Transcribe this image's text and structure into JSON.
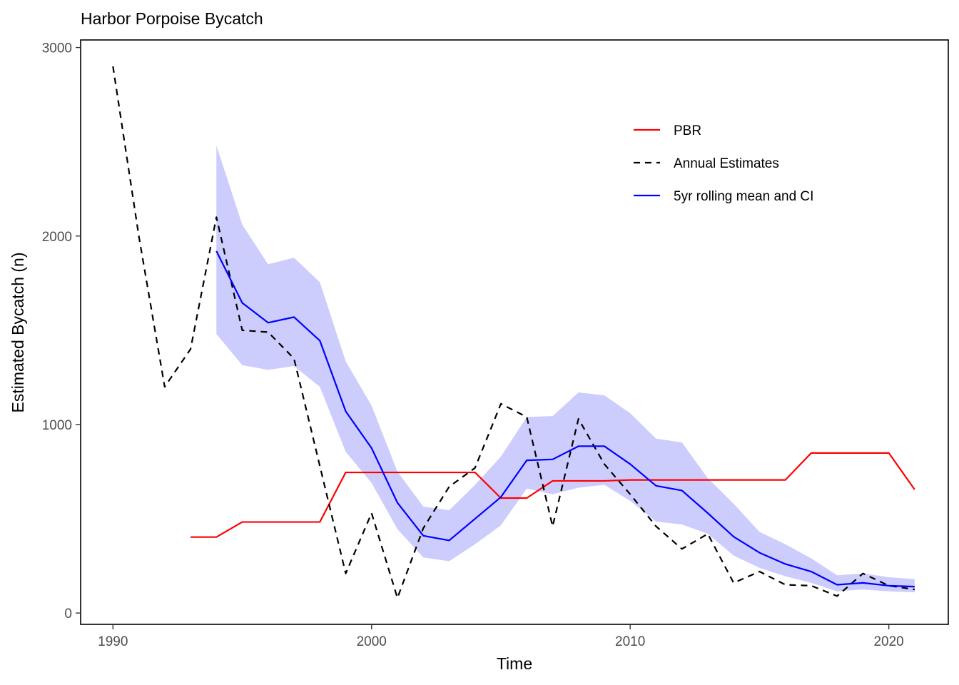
{
  "chart_data": {
    "type": "line",
    "title": "Harbor Porpoise Bycatch",
    "xlabel": "Time",
    "ylabel": "Estimated Bycatch (n)",
    "xlim": [
      1988.75,
      2022.3
    ],
    "ylim": [
      -60,
      3040
    ],
    "x_ticks": [
      1990,
      2000,
      2010,
      2020
    ],
    "x_tick_labels": [
      "1990",
      "2000",
      "2010",
      "2020"
    ],
    "y_ticks": [
      0,
      1000,
      2000,
      3000
    ],
    "y_tick_labels": [
      "0",
      "1000",
      "2000",
      "3000"
    ],
    "grid": false,
    "legend_position": "top-right",
    "legend": [
      {
        "key": "pbr",
        "label": "PBR"
      },
      {
        "key": "annual",
        "label": "Annual Estimates"
      },
      {
        "key": "rolling",
        "label": "5yr rolling mean and CI"
      }
    ],
    "series": [
      {
        "key": "pbr",
        "name": "PBR",
        "color": "#ff0000",
        "line_style": "solid",
        "x": [
          1993,
          1994,
          1995,
          1996,
          1997,
          1998,
          1999,
          2000,
          2001,
          2002,
          2003,
          2004,
          2005,
          2006,
          2007,
          2008,
          2009,
          2010,
          2011,
          2012,
          2013,
          2014,
          2015,
          2016,
          2017,
          2018,
          2019,
          2020,
          2021
        ],
        "values": [
          403,
          403,
          483,
          483,
          483,
          483,
          746,
          746,
          746,
          746,
          746,
          746,
          610,
          610,
          701,
          701,
          701,
          706,
          706,
          706,
          706,
          706,
          706,
          706,
          849,
          849,
          849,
          849,
          655
        ]
      },
      {
        "key": "annual",
        "name": "Annual Estimates",
        "color": "#000000",
        "line_style": "dashed",
        "x": [
          1990,
          1991,
          1992,
          1993,
          1994,
          1995,
          1996,
          1997,
          1998,
          1999,
          2000,
          2001,
          2002,
          2003,
          2004,
          2005,
          2006,
          2007,
          2008,
          2009,
          2010,
          2011,
          2012,
          2013,
          2014,
          2015,
          2016,
          2017,
          2018,
          2019,
          2020,
          2021
        ],
        "values": [
          2900,
          2000,
          1200,
          1400,
          2100,
          1500,
          1490,
          1350,
          780,
          210,
          530,
          80,
          450,
          670,
          770,
          1110,
          1040,
          460,
          1030,
          790,
          630,
          460,
          340,
          420,
          160,
          220,
          150,
          145,
          90,
          210,
          145,
          125
        ]
      },
      {
        "key": "rolling",
        "name": "5yr rolling mean and CI",
        "color": "#0000ff",
        "line_style": "solid",
        "band_color": "#cccdfd",
        "x": [
          1994,
          1995,
          1996,
          1997,
          1998,
          1999,
          2000,
          2001,
          2002,
          2003,
          2004,
          2005,
          2006,
          2007,
          2008,
          2009,
          2010,
          2011,
          2012,
          2013,
          2014,
          2015,
          2016,
          2017,
          2018,
          2019,
          2020,
          2021
        ],
        "values": [
          1920,
          1645,
          1540,
          1570,
          1445,
          1070,
          875,
          585,
          410,
          385,
          500,
          615,
          810,
          815,
          885,
          885,
          790,
          675,
          650,
          530,
          405,
          320,
          260,
          220,
          150,
          160,
          145,
          140
        ],
        "lower": [
          1480,
          1315,
          1290,
          1310,
          1200,
          855,
          690,
          445,
          295,
          275,
          365,
          465,
          660,
          630,
          665,
          680,
          595,
          485,
          470,
          420,
          305,
          240,
          195,
          160,
          115,
          125,
          115,
          110
        ],
        "upper": [
          2480,
          2060,
          1850,
          1885,
          1755,
          1335,
          1100,
          750,
          565,
          545,
          680,
          830,
          1040,
          1045,
          1170,
          1155,
          1060,
          925,
          905,
          715,
          580,
          430,
          365,
          290,
          200,
          210,
          190,
          180
        ]
      }
    ]
  }
}
